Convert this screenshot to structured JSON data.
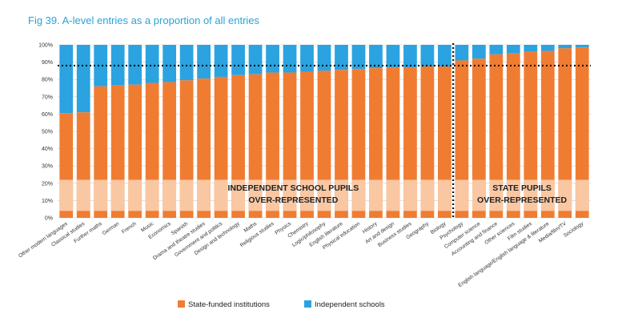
{
  "figure": {
    "title": "Fig 39. A-level entries as a proportion of all entries"
  },
  "chart_data": {
    "type": "bar",
    "stacked": true,
    "percent": true,
    "categories": [
      "Other modern languages",
      "Classical studies",
      "Further maths",
      "German",
      "French",
      "Music",
      "Economics",
      "Spanish",
      "Drama and theatre studies",
      "Government and politics",
      "Design and technology",
      "Maths",
      "Religious studies",
      "Physics",
      "Chemistry",
      "Logic/philosophy",
      "English literature",
      "Physical education",
      "History",
      "Art and design",
      "Business studies",
      "Geography",
      "Biology",
      "Psychology",
      "Computer science",
      "Accounting and finance",
      "Other sciences",
      "Film studies",
      "English language/English language & literature",
      "Media/film/TV",
      "Sociology"
    ],
    "series": [
      {
        "name": "State-funded institutions",
        "color": "#f07c32",
        "values": [
          60.5,
          61,
          76,
          76.5,
          77,
          78,
          78.5,
          79.5,
          80.5,
          81.5,
          82.5,
          83,
          84,
          84,
          84.5,
          85,
          85.5,
          86,
          86.5,
          87,
          87,
          87.5,
          87.5,
          91,
          92,
          94.5,
          95,
          96,
          96.5,
          98,
          98.5
        ]
      },
      {
        "name": "Independent schools",
        "color": "#2aa3e0",
        "values": [
          39.5,
          39,
          24,
          23.5,
          23,
          22,
          21.5,
          20.5,
          19.5,
          18.5,
          17.5,
          17,
          16,
          16,
          15.5,
          15,
          14.5,
          14,
          13.5,
          13,
          13,
          12.5,
          12.5,
          9,
          8,
          5.5,
          5,
          4,
          3.5,
          2,
          1.5
        ]
      }
    ],
    "ylim": [
      0,
      100
    ],
    "yticks": [
      "0%",
      "10%",
      "20%",
      "30%",
      "40%",
      "50%",
      "60%",
      "70%",
      "80%",
      "90%",
      "100%"
    ],
    "reference_line": 88,
    "divider_after_category": "Biology",
    "annotations": {
      "left": [
        "INDEPENDENT SCHOOL PUPILS",
        "OVER-REPRESENTED"
      ],
      "right": [
        "STATE PUPILS",
        "OVER-REPRESENTED"
      ]
    },
    "legend_position": "bottom",
    "grid": true
  }
}
